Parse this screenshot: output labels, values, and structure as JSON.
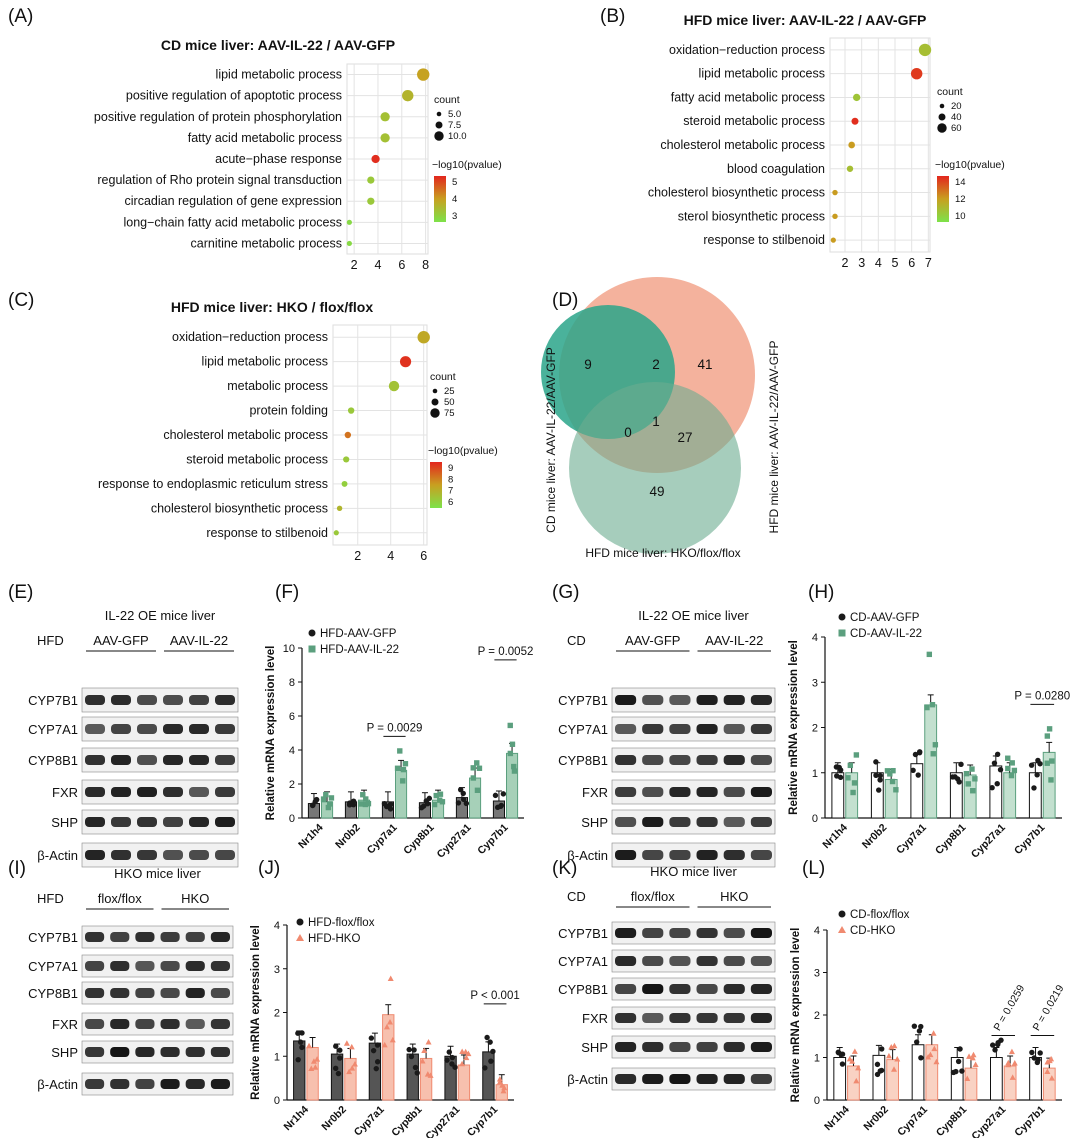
{
  "panel_labels": [
    "(A)",
    "(B)",
    "(C)",
    "(D)",
    "(E)",
    "(F)",
    "(G)",
    "(H)",
    "(I)",
    "(J)",
    "(K)",
    "(L)"
  ],
  "colors": {
    "green": "#5b9f7e",
    "salmon": "#f08a70",
    "teal": "#2aa58a",
    "venn_green": "#6aab8f",
    "venn_salmon": "#f2a48c",
    "black": "#1a1a1a",
    "grid": "#e3e3e3",
    "grad_high": "#e3261e",
    "grad_mid": "#c8a020",
    "grad_low": "#7de24a"
  },
  "chart_data": [
    {
      "id": "A",
      "type": "scatter",
      "title": "CD mice liver: AAV-IL-22 / AAV-GFP",
      "terms": [
        "lipid metabolic process",
        "positive regulation of apoptotic process",
        "positive regulation of protein phosphorylation",
        "fatty acid metabolic process",
        "acute−phase response",
        "regulation of Rho protein signal transduction",
        "circadian regulation of gene expression",
        "long−chain fatty acid metabolic process",
        "carnitine metabolic process"
      ],
      "x": [
        7.8,
        6.5,
        4.6,
        4.6,
        3.8,
        3.4,
        3.4,
        1.6,
        1.6
      ],
      "count": [
        11,
        10,
        8,
        8,
        7,
        6,
        6,
        4,
        4
      ],
      "neglog10p": [
        4.0,
        3.6,
        3.3,
        3.3,
        5.5,
        3.1,
        3.1,
        2.7,
        2.7
      ],
      "xticks": [
        2,
        4,
        6,
        8
      ],
      "xlim": [
        1.4,
        8.2
      ],
      "size_legend_title": "count",
      "size_legend": [
        "5.0",
        "7.5",
        "10.0"
      ],
      "color_legend_title": "−log10(pvalue)",
      "color_ticks": [
        "5",
        "4",
        "3"
      ],
      "color_range": [
        2.5,
        5.6
      ]
    },
    {
      "id": "B",
      "type": "scatter",
      "title": "HFD mice liver: AAV-IL-22 / AAV-GFP",
      "terms": [
        "oxidation−reduction process",
        "lipid metabolic process",
        "fatty acid metabolic process",
        "steroid metabolic process",
        "cholesterol metabolic process",
        "blood coagulation",
        "cholesterol biosynthetic process",
        "sterol biosynthetic process",
        "response to stilbenoid"
      ],
      "x": [
        6.8,
        6.3,
        2.7,
        2.6,
        2.4,
        2.3,
        1.4,
        1.4,
        1.3
      ],
      "count": [
        70,
        62,
        28,
        25,
        22,
        20,
        12,
        12,
        10
      ],
      "neglog10p": [
        10.5,
        14.5,
        10.2,
        14.8,
        12.0,
        10.5,
        12.0,
        12.0,
        12.0
      ],
      "xticks": [
        2,
        3,
        4,
        5,
        6,
        7
      ],
      "xlim": [
        1.1,
        7.1
      ],
      "size_legend_title": "count",
      "size_legend": [
        "20",
        "40",
        "60"
      ],
      "color_legend_title": "−log10(pvalue)",
      "color_ticks": [
        "14",
        "12",
        "10"
      ],
      "color_range": [
        8.8,
        15
      ]
    },
    {
      "id": "C",
      "type": "scatter",
      "title": "HFD mice liver: HKO / flox/flox",
      "terms": [
        "oxidation−reduction process",
        "lipid metabolic process",
        "metabolic process",
        "protein folding",
        "cholesterol metabolic process",
        "steroid metabolic process",
        "response to endoplasmic reticulum stress",
        "cholesterol biosynthetic process",
        "response to stilbenoid"
      ],
      "x": [
        6.0,
        4.9,
        4.2,
        1.6,
        1.4,
        1.3,
        1.2,
        0.9,
        0.7
      ],
      "count": [
        90,
        78,
        70,
        30,
        30,
        28,
        25,
        20,
        18
      ],
      "neglog10p": [
        7.4,
        9.5,
        6.6,
        6.4,
        8.4,
        6.4,
        6.2,
        7.0,
        6.4
      ],
      "xticks": [
        2,
        4,
        6
      ],
      "xlim": [
        0.5,
        6.2
      ],
      "size_legend_title": "count",
      "size_legend": [
        "25",
        "50",
        "75"
      ],
      "color_legend_title": "−log10(pvalue)",
      "color_ticks": [
        "9",
        "8",
        "7",
        "6"
      ],
      "color_range": [
        5.6,
        9.7
      ]
    },
    {
      "id": "D",
      "type": "venn",
      "set_labels": [
        "CD mice liver: AAV-IL-22/AAV-GFP",
        "HFD mice liver: AAV-IL-22/AAV-GFP",
        "HFD mice liver: HKO/flox/flox"
      ],
      "regions": {
        "only_cd": "9",
        "cd_and_hfd": "2",
        "only_hfd": "41",
        "cd_and_hko": "0",
        "all": "1",
        "hfd_and_hko": "27",
        "only_hko": "49"
      }
    },
    {
      "id": "F",
      "type": "bar",
      "ylabel": "Relative mRNA expression level",
      "categories": [
        "Nr1h4",
        "Nr0b2",
        "Cyp7a1",
        "Cyp8b1",
        "Cyp27a1",
        "Cyp7b1"
      ],
      "series": [
        {
          "name": "HFD-AAV-GFP",
          "values": [
            0.85,
            0.95,
            0.95,
            0.9,
            1.2,
            1.0
          ]
        },
        {
          "name": "HFD-AAV-IL-22",
          "values": [
            0.95,
            1.05,
            2.8,
            1.05,
            2.35,
            3.8
          ]
        }
      ],
      "ylim": [
        0,
        10
      ],
      "yticks": [
        0,
        2,
        4,
        6,
        8,
        10
      ],
      "annotations": [
        {
          "text": "P = 0.0029",
          "cat": 2
        },
        {
          "text": "P = 0.0052",
          "cat": 5
        }
      ]
    },
    {
      "id": "H",
      "type": "bar",
      "ylabel": "Relative mRNA expression level",
      "categories": [
        "Nr1h4",
        "Nr0b2",
        "Cyp7a1",
        "Cyp8b1",
        "Cyp27a1",
        "Cyp7b1"
      ],
      "series": [
        {
          "name": "CD-AAV-GFP",
          "values": [
            1.0,
            1.0,
            1.2,
            1.0,
            1.15,
            1.0
          ]
        },
        {
          "name": "CD-AAV-IL-22",
          "values": [
            1.0,
            0.85,
            2.5,
            0.95,
            1.0,
            1.45
          ]
        }
      ],
      "ylim": [
        0,
        4
      ],
      "yticks": [
        0,
        1,
        2,
        3,
        4
      ],
      "annotations": [
        {
          "text": "P = 0.0280",
          "cat": 5
        }
      ]
    },
    {
      "id": "J",
      "type": "bar",
      "ylabel": "Relative mRNA expression level",
      "categories": [
        "Nr1h4",
        "Nr0b2",
        "Cyp7a1",
        "Cyp8b1",
        "Cyp27a1",
        "Cyp7b1"
      ],
      "series": [
        {
          "name": "HFD-flox/flox",
          "values": [
            1.35,
            1.05,
            1.3,
            1.05,
            1.0,
            1.1
          ]
        },
        {
          "name": "HFD-HKO",
          "values": [
            1.2,
            0.95,
            1.95,
            0.95,
            0.8,
            0.35
          ]
        }
      ],
      "ylim": [
        0,
        4
      ],
      "yticks": [
        0,
        1,
        2,
        3,
        4
      ],
      "annotations": [
        {
          "text": "P < 0.001",
          "cat": 5
        }
      ]
    },
    {
      "id": "L",
      "type": "bar",
      "ylabel": "Relative mRNA expression level",
      "categories": [
        "Nr1h4",
        "Nr0b2",
        "Cyp7a1",
        "Cyp8b1",
        "Cyp27a1",
        "Cyp7b1"
      ],
      "series": [
        {
          "name": "CD-flox/flox",
          "values": [
            1.0,
            1.05,
            1.3,
            1.0,
            1.0,
            1.0
          ]
        },
        {
          "name": "CD-HKO",
          "values": [
            0.8,
            0.95,
            1.3,
            0.75,
            0.8,
            0.75
          ]
        }
      ],
      "ylim": [
        0,
        4
      ],
      "yticks": [
        0,
        1,
        2,
        3,
        4
      ],
      "annotations": [
        {
          "text": "P = 0.0259",
          "cat": 4,
          "rotated": true
        },
        {
          "text": "P = 0.0219",
          "cat": 5,
          "rotated": true
        }
      ]
    }
  ],
  "blots": [
    {
      "id": "E",
      "title": "IL-22 OE mice liver",
      "diet": "HFD",
      "groups": [
        "AAV-GFP",
        "AAV-IL-22"
      ],
      "rows": [
        "CYP7B1",
        "CYP7A1",
        "CYP8B1",
        "FXR",
        "SHP",
        "β-Actin"
      ]
    },
    {
      "id": "G",
      "title": "IL-22 OE mice liver",
      "diet": "CD",
      "groups": [
        "AAV-GFP",
        "AAV-IL-22"
      ],
      "rows": [
        "CYP7B1",
        "CYP7A1",
        "CYP8B1",
        "FXR",
        "SHP",
        "β-Actin"
      ]
    },
    {
      "id": "I",
      "title": "HKO mice liver",
      "diet": "HFD",
      "groups": [
        "flox/flox",
        "HKO"
      ],
      "rows": [
        "CYP7B1",
        "CYP7A1",
        "CYP8B1",
        "FXR",
        "SHP",
        "β-Actin"
      ]
    },
    {
      "id": "K",
      "title": "HKO mice liver",
      "diet": "CD",
      "groups": [
        "flox/flox",
        "HKO"
      ],
      "rows": [
        "CYP7B1",
        "CYP7A1",
        "CYP8B1",
        "FXR",
        "SHP",
        "β-Actin"
      ]
    }
  ]
}
